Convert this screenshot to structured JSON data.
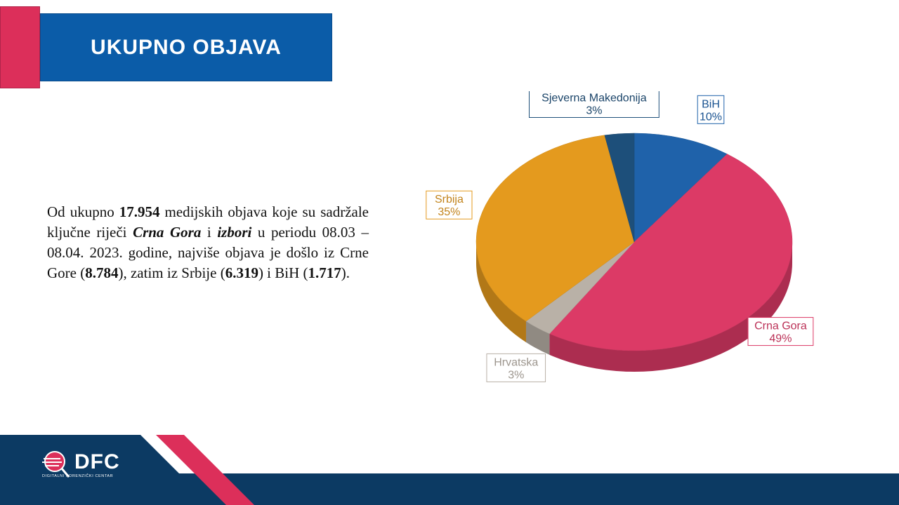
{
  "header": {
    "title": "UKUPNO OBJAVA"
  },
  "paragraph": {
    "t1": "Od ukupno ",
    "total": "17.954",
    "t2": " medijskih objava koje su sadržale ključne riječi ",
    "kw1": "Crna Gora",
    "t3": " i ",
    "kw2": "izbori",
    "t4": " u periodu 08.03 – 08.04. 2023. godine, najviše objava je došlo iz Crne Gore (",
    "v1": "8.784",
    "t5": "), zatim iz Srbije (",
    "v2": "6.319",
    "t6": ") i BiH (",
    "v3": "1.717",
    "t7": ")."
  },
  "chart_data": {
    "type": "pie",
    "slices": [
      {
        "label": "BiH",
        "value": 10,
        "display": "10%",
        "color": "#1f62aa"
      },
      {
        "label": "Crna Gora",
        "value": 49,
        "display": "49%",
        "color": "#dc3a66"
      },
      {
        "label": "Hrvatska",
        "value": 3,
        "display": "3%",
        "color": "#b9b1a7"
      },
      {
        "label": "Srbija",
        "value": 35,
        "display": "35%",
        "color": "#e49a1e"
      },
      {
        "label": "Sjeverna Makedonija",
        "value": 3,
        "display": "3%",
        "color": "#1d4f7a"
      }
    ]
  },
  "footer": {
    "logo_text": "DFC",
    "logo_subtitle": "DIGITALNI FORENZIČKI CENTAR"
  },
  "colors": {
    "accent": "#dc2f5a",
    "brand": "#0b5ca8",
    "footer": "#0c3a63"
  }
}
